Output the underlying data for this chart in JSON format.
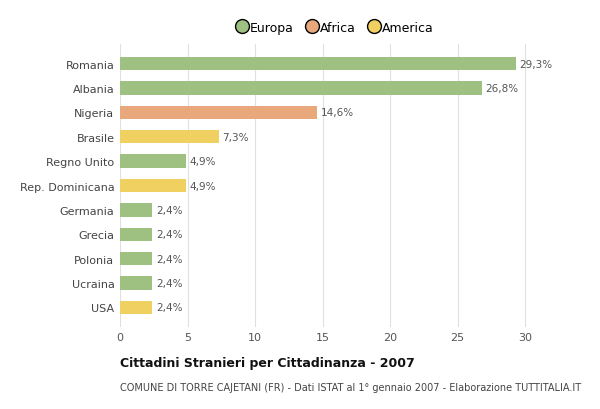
{
  "categories": [
    "Romania",
    "Albania",
    "Nigeria",
    "Brasile",
    "Regno Unito",
    "Rep. Dominicana",
    "Germania",
    "Grecia",
    "Polonia",
    "Ucraina",
    "USA"
  ],
  "values": [
    29.3,
    26.8,
    14.6,
    7.3,
    4.9,
    4.9,
    2.4,
    2.4,
    2.4,
    2.4,
    2.4
  ],
  "labels": [
    "29,3%",
    "26,8%",
    "14,6%",
    "7,3%",
    "4,9%",
    "4,9%",
    "2,4%",
    "2,4%",
    "2,4%",
    "2,4%",
    "2,4%"
  ],
  "colors": [
    "#9ec080",
    "#9ec080",
    "#e8a87c",
    "#f0d060",
    "#9ec080",
    "#f0d060",
    "#9ec080",
    "#9ec080",
    "#9ec080",
    "#9ec080",
    "#f0d060"
  ],
  "legend_labels": [
    "Europa",
    "Africa",
    "America"
  ],
  "legend_colors": [
    "#9ec080",
    "#e8a87c",
    "#f0d060"
  ],
  "title": "Cittadini Stranieri per Cittadinanza - 2007",
  "subtitle": "COMUNE DI TORRE CAJETANI (FR) - Dati ISTAT al 1° gennaio 2007 - Elaborazione TUTTITALIA.IT",
  "xlim": [
    0,
    32
  ],
  "xticks": [
    0,
    5,
    10,
    15,
    20,
    25,
    30
  ],
  "background_color": "#ffffff",
  "grid_color": "#e0e0e0",
  "bar_height": 0.55
}
